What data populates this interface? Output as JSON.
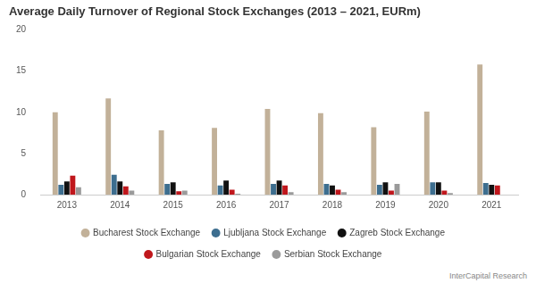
{
  "chart_data": {
    "type": "bar",
    "title": "Average Daily Turnover of Regional Stock Exchanges (2013 – 2021, EURm)",
    "source": "InterCapital Research",
    "categories": [
      "2013",
      "2014",
      "2015",
      "2016",
      "2017",
      "2018",
      "2019",
      "2020",
      "2021"
    ],
    "series": [
      {
        "name": "Bucharest Stock Exchange",
        "color": "#c2b199",
        "values": [
          10.0,
          11.7,
          7.8,
          8.1,
          10.4,
          9.9,
          8.2,
          10.1,
          15.8
        ]
      },
      {
        "name": "Ljubljana Stock Exchange",
        "color": "#3d6e8f",
        "values": [
          1.2,
          2.4,
          1.3,
          1.1,
          1.3,
          1.3,
          1.2,
          1.5,
          1.4
        ]
      },
      {
        "name": "Zagreb Stock Exchange",
        "color": "#111111",
        "values": [
          1.6,
          1.6,
          1.5,
          1.7,
          1.7,
          1.1,
          1.5,
          1.5,
          1.2
        ]
      },
      {
        "name": "Bulgarian Stock Exchange",
        "color": "#c0171c",
        "values": [
          2.3,
          1.0,
          0.4,
          0.6,
          1.1,
          0.6,
          0.5,
          0.5,
          1.1
        ]
      },
      {
        "name": "Serbian Stock Exchange",
        "color": "#9a9a9a",
        "values": [
          0.9,
          0.5,
          0.5,
          0.1,
          0.3,
          0.3,
          1.3,
          0.2,
          null
        ]
      }
    ],
    "ylim": [
      0,
      20
    ],
    "yticks": [
      0,
      5,
      10,
      15,
      20
    ],
    "grid": false,
    "legend": "bottom"
  }
}
